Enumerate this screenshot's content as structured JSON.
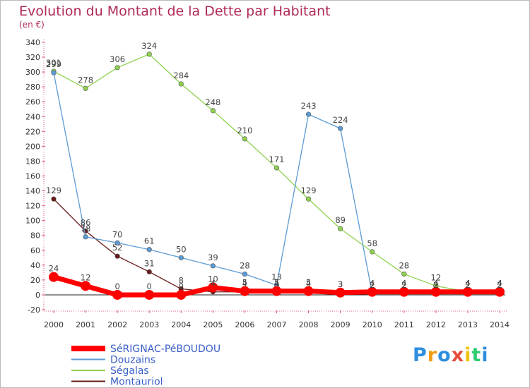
{
  "chart_data": {
    "type": "line",
    "title": "Evolution du Montant de la Dette par Habitant",
    "subtitle": "(en €)",
    "x": [
      "2000",
      "2001",
      "2002",
      "2003",
      "2004",
      "2005",
      "2006",
      "2007",
      "2008",
      "2009",
      "2010",
      "2011",
      "2012",
      "2013",
      "2014"
    ],
    "ylim": [
      -20,
      340
    ],
    "yticks": [
      -20,
      0,
      20,
      40,
      60,
      80,
      100,
      120,
      140,
      160,
      180,
      200,
      220,
      240,
      260,
      280,
      300,
      320,
      340
    ],
    "grid": false,
    "legend_placement": "bottom-left",
    "series": [
      {
        "name": "SéRIGNAC-PéBOUDOU",
        "color": "#ff0000",
        "thick": true,
        "values": [
          24,
          12,
          0,
          0,
          0,
          10,
          5,
          5,
          5,
          3,
          4,
          4,
          4,
          4,
          4
        ]
      },
      {
        "name": "Douzains",
        "color": "#5b9bd5",
        "values": [
          299,
          78,
          70,
          61,
          50,
          39,
          28,
          13,
          243,
          224,
          2,
          2,
          2,
          2,
          2
        ]
      },
      {
        "name": "Ségalas",
        "color": "#8fd14f",
        "values": [
          301,
          278,
          306,
          324,
          284,
          248,
          210,
          171,
          129,
          89,
          58,
          28,
          12,
          4,
          4
        ]
      },
      {
        "name": "Montauriol",
        "color": "#6b1a1a",
        "values": [
          129,
          86,
          52,
          31,
          8,
          4,
          4,
          4,
          4,
          3,
          2,
          2,
          2,
          2,
          2
        ]
      }
    ],
    "data_labels": [
      {
        "series": 0,
        "labels": [
          "24",
          "12",
          "0",
          "0",
          "0",
          "10",
          "5",
          "5",
          "5",
          "3",
          "4",
          "4",
          "4",
          "4",
          "4"
        ]
      },
      {
        "series": 1,
        "labels": [
          "299",
          "78",
          "70",
          "61",
          "50",
          "39",
          "28",
          "13",
          "243",
          "224",
          "2",
          "2",
          "2",
          "2",
          "2"
        ]
      },
      {
        "series": 2,
        "labels": [
          "301",
          "278",
          "306",
          "324",
          "284",
          "248",
          "210",
          "171",
          "129",
          "89",
          "58",
          "28",
          "12",
          "4",
          "4"
        ]
      },
      {
        "series": 3,
        "labels": [
          "129",
          "86",
          "52",
          "31",
          "8",
          "4",
          "4",
          "4",
          "4",
          "3",
          "2",
          "2",
          "2",
          "2",
          "2"
        ]
      }
    ]
  },
  "logo": {
    "letters": [
      "P",
      "r",
      "o",
      "x",
      "i",
      "t",
      "i"
    ],
    "colors": [
      "#2e8ede",
      "#f39c12",
      "#2e8ede",
      "#e74c3c",
      "#f1c40f",
      "#2ecc71",
      "#2e8ede"
    ]
  }
}
